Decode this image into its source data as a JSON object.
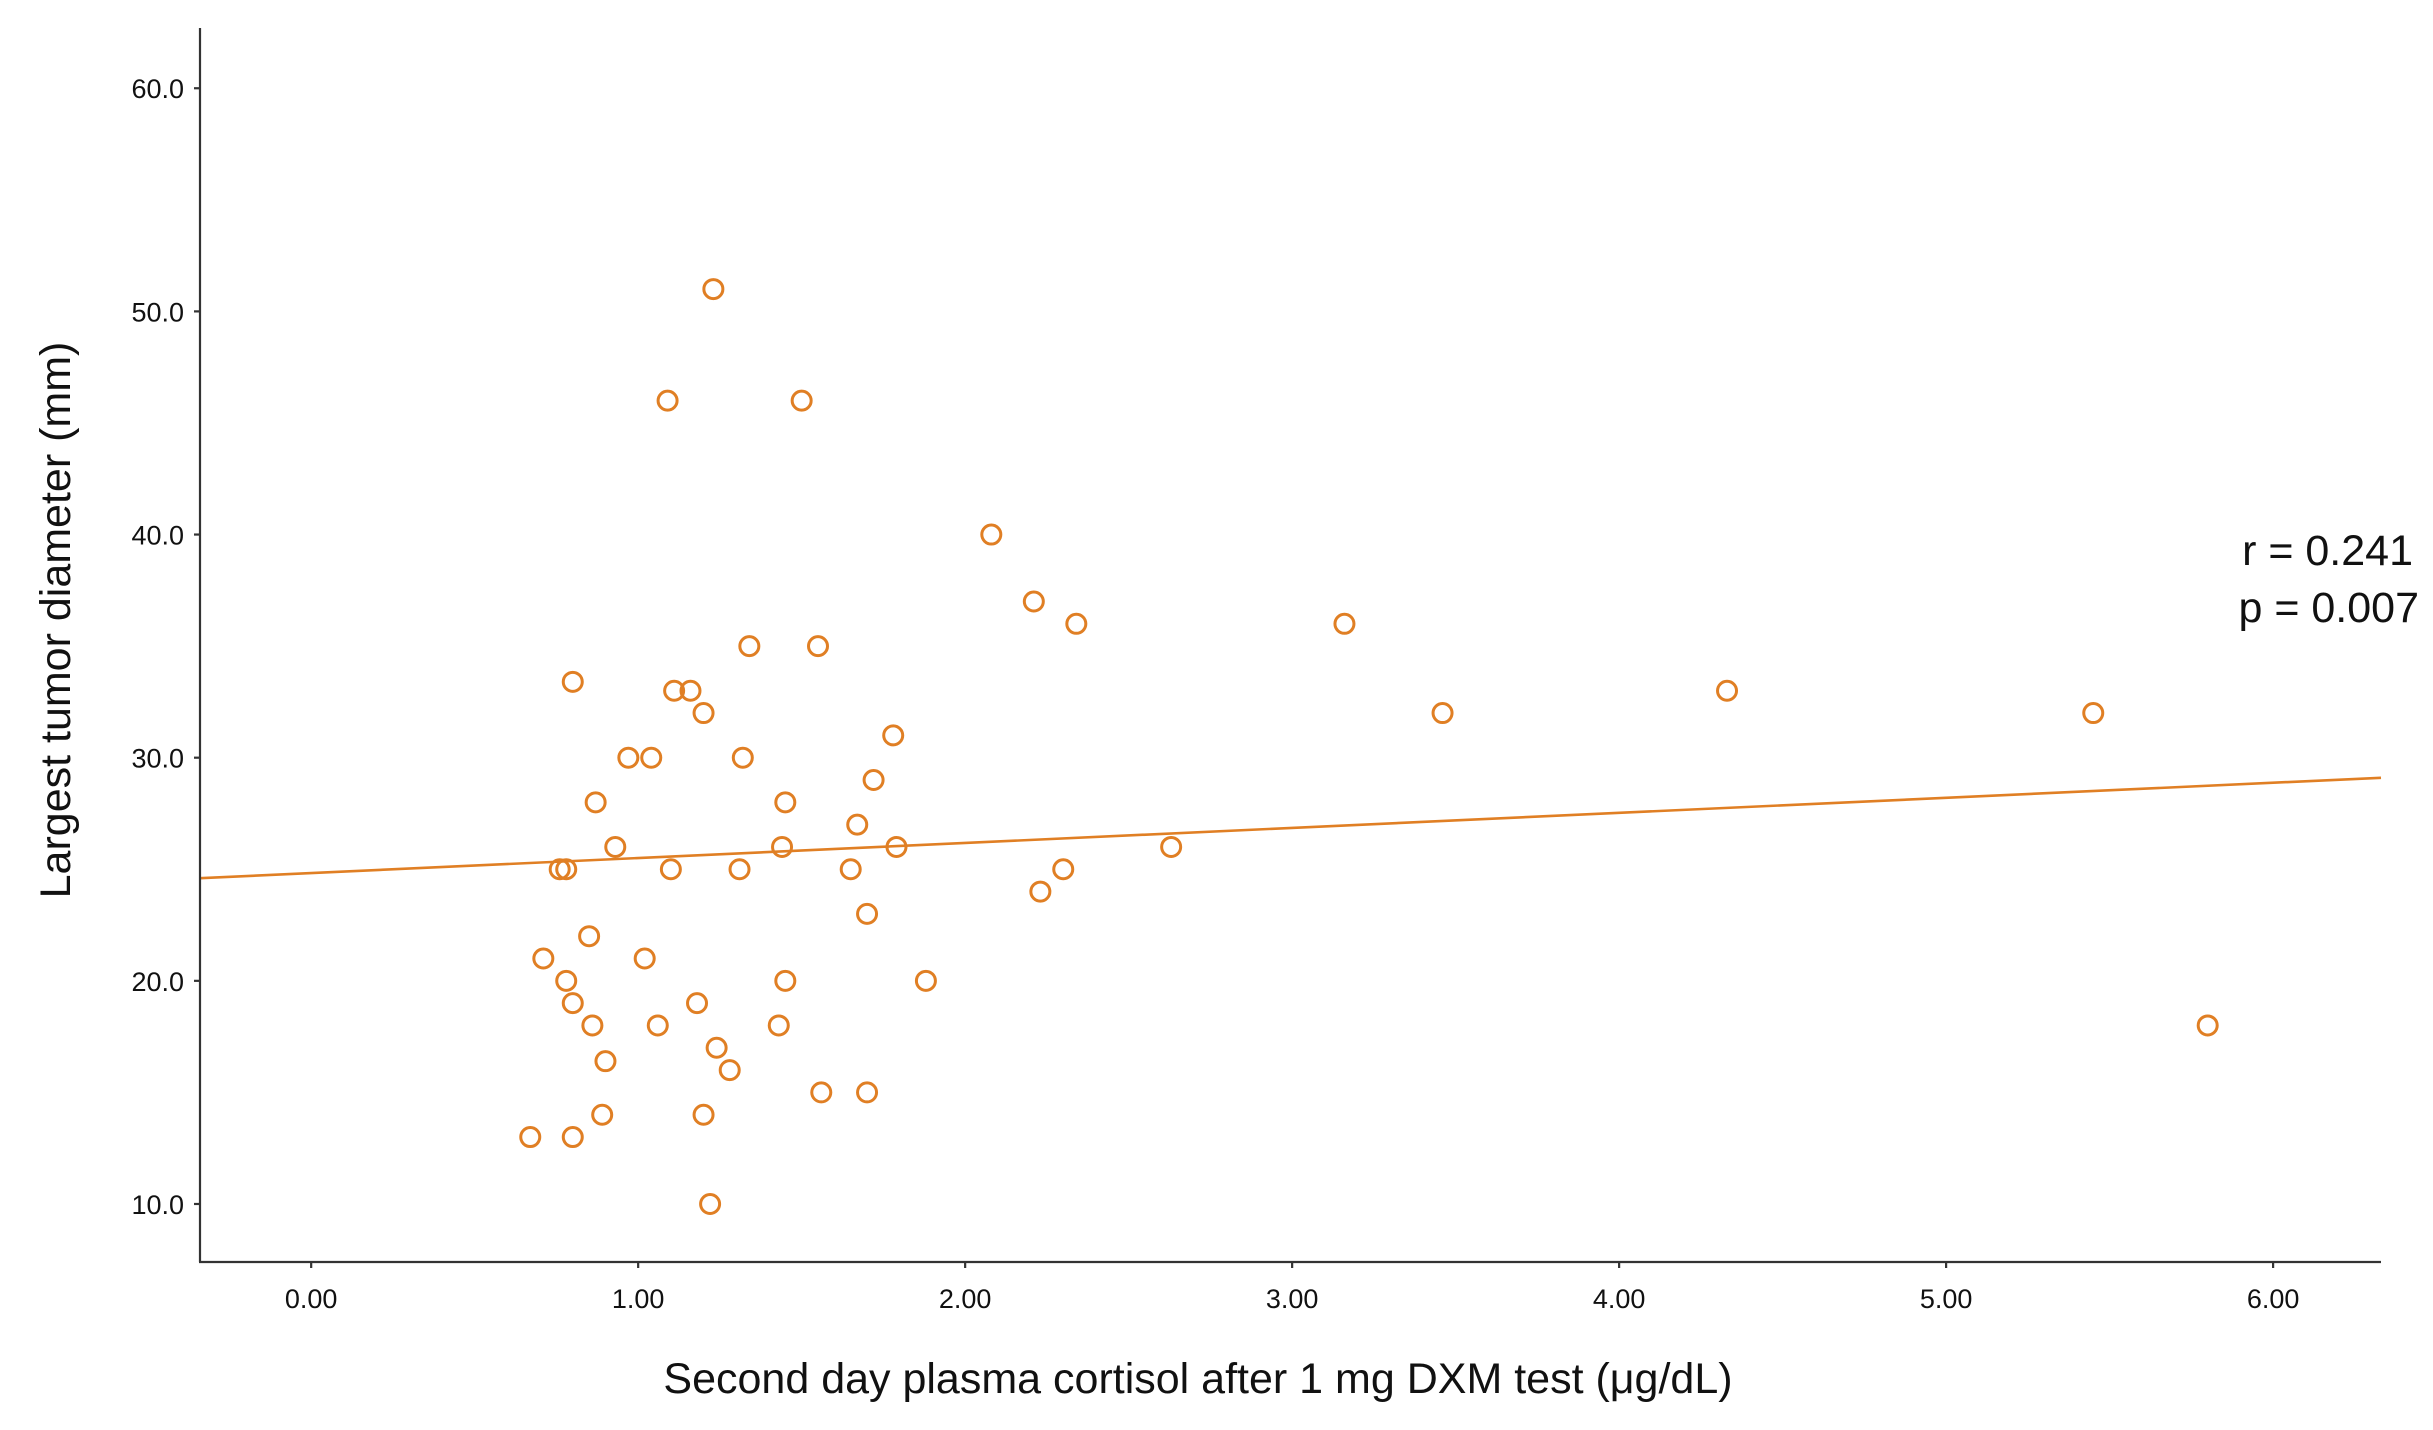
{
  "chart_data": {
    "type": "scatter",
    "title": "",
    "xlabel": "Second day plasma cortisol after 1 mg DXM test (μg/dL)",
    "ylabel": "Largest tumor diameter (mm)",
    "xlim": [
      -0.34,
      6.33
    ],
    "ylim": [
      7.4,
      62.7
    ],
    "x_ticks": [
      0,
      1,
      2,
      3,
      4,
      5,
      6
    ],
    "x_tick_labels": [
      "0.00",
      "1.00",
      "2.00",
      "3.00",
      "4.00",
      "5.00",
      "6.00"
    ],
    "y_ticks": [
      10,
      20,
      30,
      40,
      50,
      60
    ],
    "y_tick_labels": [
      "10.0",
      "20.0",
      "30.0",
      "40.0",
      "50.0",
      "60.0"
    ],
    "grid": false,
    "color": "#E07F24",
    "points": [
      {
        "x": 1.23,
        "y": 51
      },
      {
        "x": 1.09,
        "y": 46
      },
      {
        "x": 1.5,
        "y": 46
      },
      {
        "x": 2.08,
        "y": 40
      },
      {
        "x": 2.21,
        "y": 37
      },
      {
        "x": 2.34,
        "y": 36
      },
      {
        "x": 1.34,
        "y": 35
      },
      {
        "x": 1.55,
        "y": 35
      },
      {
        "x": 3.16,
        "y": 36
      },
      {
        "x": 3.46,
        "y": 32
      },
      {
        "x": 4.33,
        "y": 33
      },
      {
        "x": 5.45,
        "y": 32
      },
      {
        "x": 0.8,
        "y": 33.4
      },
      {
        "x": 1.11,
        "y": 33
      },
      {
        "x": 1.16,
        "y": 33
      },
      {
        "x": 1.2,
        "y": 32
      },
      {
        "x": 1.78,
        "y": 31
      },
      {
        "x": 0.97,
        "y": 30
      },
      {
        "x": 1.04,
        "y": 30
      },
      {
        "x": 1.32,
        "y": 30
      },
      {
        "x": 1.72,
        "y": 29
      },
      {
        "x": 0.87,
        "y": 28
      },
      {
        "x": 1.45,
        "y": 28
      },
      {
        "x": 1.67,
        "y": 27
      },
      {
        "x": 0.93,
        "y": 26
      },
      {
        "x": 1.44,
        "y": 26
      },
      {
        "x": 1.79,
        "y": 26
      },
      {
        "x": 2.63,
        "y": 26
      },
      {
        "x": 0.76,
        "y": 25
      },
      {
        "x": 0.78,
        "y": 25
      },
      {
        "x": 1.1,
        "y": 25
      },
      {
        "x": 1.31,
        "y": 25
      },
      {
        "x": 1.65,
        "y": 25
      },
      {
        "x": 2.3,
        "y": 25
      },
      {
        "x": 2.23,
        "y": 24
      },
      {
        "x": 1.7,
        "y": 23
      },
      {
        "x": 0.85,
        "y": 22
      },
      {
        "x": 0.71,
        "y": 21
      },
      {
        "x": 1.02,
        "y": 21
      },
      {
        "x": 0.78,
        "y": 20
      },
      {
        "x": 1.45,
        "y": 20
      },
      {
        "x": 1.88,
        "y": 20
      },
      {
        "x": 0.8,
        "y": 19
      },
      {
        "x": 1.18,
        "y": 19
      },
      {
        "x": 0.86,
        "y": 18
      },
      {
        "x": 1.06,
        "y": 18
      },
      {
        "x": 1.43,
        "y": 18
      },
      {
        "x": 5.8,
        "y": 18
      },
      {
        "x": 1.24,
        "y": 17
      },
      {
        "x": 0.9,
        "y": 16.4
      },
      {
        "x": 1.28,
        "y": 16
      },
      {
        "x": 1.56,
        "y": 15
      },
      {
        "x": 1.7,
        "y": 15
      },
      {
        "x": 0.89,
        "y": 14
      },
      {
        "x": 1.2,
        "y": 14
      },
      {
        "x": 0.67,
        "y": 13
      },
      {
        "x": 0.8,
        "y": 13
      },
      {
        "x": 1.22,
        "y": 10
      }
    ],
    "fit_line": {
      "x": [
        -0.34,
        6.33
      ],
      "y": [
        24.6,
        29.1
      ]
    },
    "annotations": [
      "r = 0.241",
      "p = 0.007"
    ]
  }
}
